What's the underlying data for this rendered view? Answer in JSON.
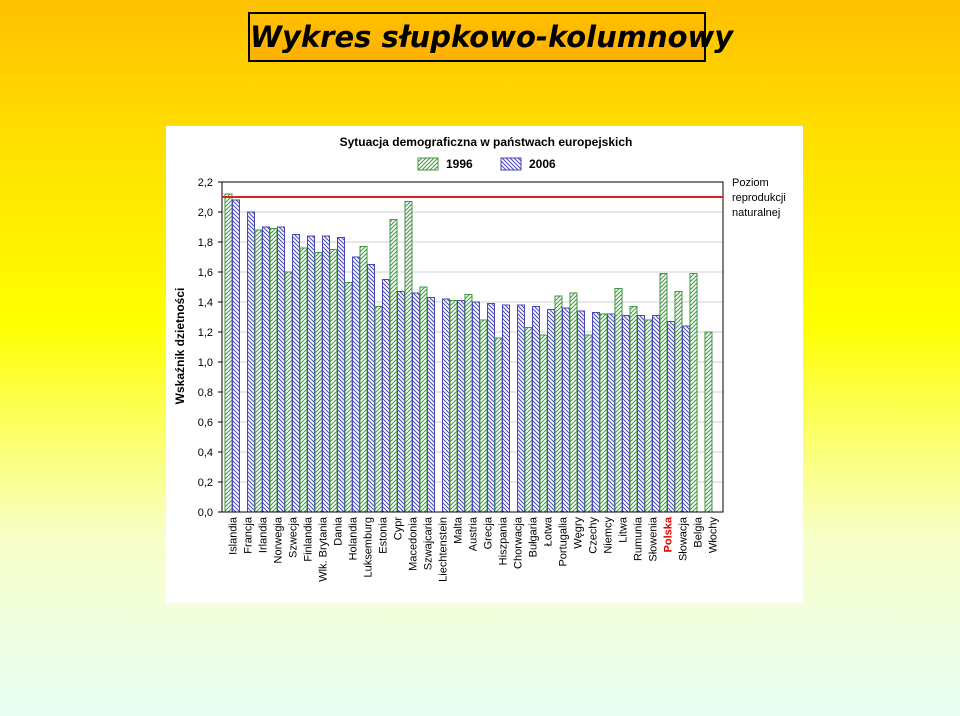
{
  "slide": {
    "title": "Wykres słupkowo-kolumnowy"
  },
  "chart_data": {
    "type": "bar",
    "title": "Sytuacja demograficzna w państwach europejskich",
    "xlabel": "",
    "ylabel": "Wskaźnik dzietności",
    "ylim": [
      0,
      2.2
    ],
    "yticks": [
      "0,0",
      "0,2",
      "0,4",
      "0,6",
      "0,8",
      "1,0",
      "1,2",
      "1,4",
      "1,6",
      "1,8",
      "2,0",
      "2,2"
    ],
    "grid": "horizontal",
    "legend_position": "top",
    "categories": [
      "Islandia",
      "Francja",
      "Irlandia",
      "Norwegia",
      "Szwecja",
      "Finlandia",
      "Wlk. Brytania",
      "Dania",
      "Holandia",
      "Luksemburg",
      "Estonia",
      "Cypr",
      "Macedonia",
      "Szwajcaria",
      "Liechtenstein",
      "Malta",
      "Austria",
      "Grecja",
      "Hiszpania",
      "Chorwacja",
      "Bułgaria",
      "Łotwa",
      "Portugalia",
      "Węgry",
      "Czechy",
      "Niemcy",
      "Litwa",
      "Rumunia",
      "Słowenia",
      "Polska",
      "Słowacja",
      "Belgia",
      "Włochy"
    ],
    "highlight_category": "Polska",
    "highlight_color": "#e00000",
    "series": [
      {
        "name": "1996",
        "color": "#3c9a3c",
        "values": [
          2.12,
          null,
          1.88,
          1.89,
          1.6,
          1.76,
          1.73,
          1.75,
          1.53,
          1.77,
          1.37,
          1.95,
          2.07,
          1.5,
          null,
          1.41,
          1.45,
          1.28,
          1.16,
          null,
          1.23,
          1.18,
          1.44,
          1.46,
          1.18,
          1.32,
          1.49,
          1.37,
          1.28,
          1.59,
          1.47,
          1.59,
          1.2
        ]
      },
      {
        "name": "2006",
        "color": "#4848b4",
        "values": [
          2.08,
          2.0,
          1.9,
          1.9,
          1.85,
          1.84,
          1.84,
          1.83,
          1.7,
          1.65,
          1.55,
          1.47,
          1.46,
          1.43,
          1.42,
          1.41,
          1.4,
          1.39,
          1.38,
          1.38,
          1.37,
          1.35,
          1.36,
          1.34,
          1.33,
          1.32,
          1.31,
          1.31,
          1.31,
          1.27,
          1.24,
          null,
          null
        ]
      }
    ],
    "reference_line": {
      "value": 2.1,
      "label": [
        "Poziom",
        "reprodukcji",
        "naturalnej"
      ],
      "color": "#e02020"
    }
  }
}
